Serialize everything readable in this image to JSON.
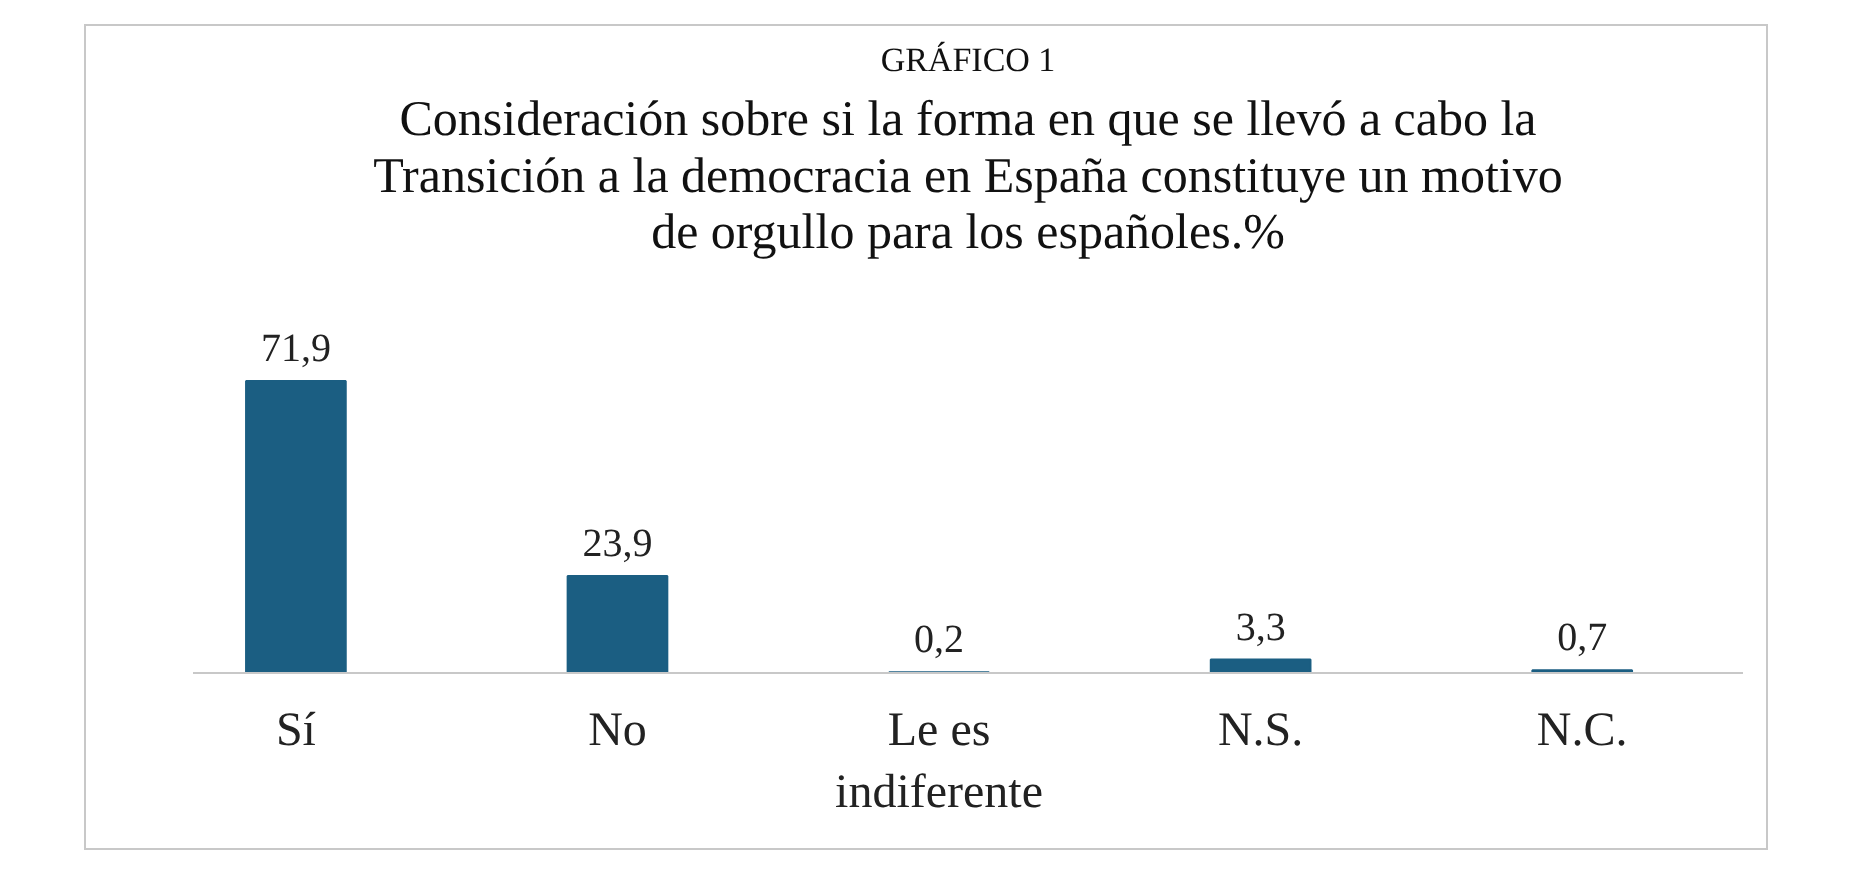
{
  "chart_data": {
    "type": "bar",
    "title": "GRÁFICO 1",
    "subtitle": "Consideración sobre si la forma en que se llevó a cabo la Transición a la democracia en España constituye un motivo de orgullo para los españoles.%",
    "categories": [
      "Sí",
      "No",
      "Le es indiferente",
      "N.S.",
      "N.C."
    ],
    "values": [
      71.9,
      23.9,
      0.2,
      3.3,
      0.7
    ],
    "value_labels": [
      "71,9",
      "23,9",
      "0,2",
      "3,3",
      "0,7"
    ],
    "color": "#1b5e82",
    "grid": false
  }
}
